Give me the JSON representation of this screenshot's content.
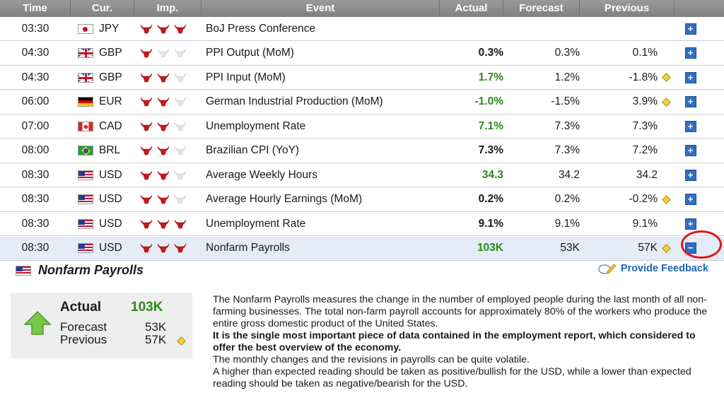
{
  "columns": {
    "time": "Time",
    "cur": "Cur.",
    "imp": "Imp.",
    "event": "Event",
    "actual": "Actual",
    "forecast": "Forecast",
    "previous": "Previous"
  },
  "rows": [
    {
      "time": "03:30",
      "currency": "JPY",
      "flag": "jp",
      "importance": 3,
      "event": "BoJ Press Conference",
      "actual": "",
      "forecast": "",
      "previous": "",
      "revised": false,
      "expanded": false
    },
    {
      "time": "04:30",
      "currency": "GBP",
      "flag": "gb",
      "importance": 1,
      "event": "PPI Output (MoM)",
      "actual": "0.3%",
      "forecast": "0.3%",
      "previous": "0.1%",
      "revised": false,
      "expanded": false
    },
    {
      "time": "04:30",
      "currency": "GBP",
      "flag": "gb",
      "importance": 2,
      "event": "PPI Input (MoM)",
      "actual": "1.7%",
      "forecast": "1.2%",
      "previous": "-1.8%",
      "revised": true,
      "expanded": false
    },
    {
      "time": "06:00",
      "currency": "EUR",
      "flag": "de",
      "importance": 2,
      "event": "German Industrial Production (MoM)",
      "actual": "-1.0%",
      "forecast": "-1.5%",
      "previous": "3.9%",
      "revised": true,
      "expanded": false
    },
    {
      "time": "07:00",
      "currency": "CAD",
      "flag": "ca",
      "importance": 2,
      "event": "Unemployment Rate",
      "actual": "7.1%",
      "forecast": "7.3%",
      "previous": "7.3%",
      "revised": false,
      "expanded": false
    },
    {
      "time": "08:00",
      "currency": "BRL",
      "flag": "br",
      "importance": 2,
      "event": "Brazilian CPI (YoY)",
      "actual": "7.3%",
      "forecast": "7.3%",
      "previous": "7.2%",
      "revised": false,
      "expanded": false
    },
    {
      "time": "08:30",
      "currency": "USD",
      "flag": "us",
      "importance": 2,
      "event": "Average Weekly Hours",
      "actual": "34.3",
      "forecast": "34.2",
      "previous": "34.2",
      "revised": false,
      "expanded": false
    },
    {
      "time": "08:30",
      "currency": "USD",
      "flag": "us",
      "importance": 2,
      "event": "Average Hourly Earnings (MoM)",
      "actual": "0.2%",
      "forecast": "0.2%",
      "previous": "-0.2%",
      "revised": true,
      "expanded": false
    },
    {
      "time": "08:30",
      "currency": "USD",
      "flag": "us",
      "importance": 3,
      "event": "Unemployment Rate",
      "actual": "9.1%",
      "forecast": "9.1%",
      "previous": "9.1%",
      "revised": false,
      "expanded": false
    },
    {
      "time": "08:30",
      "currency": "USD",
      "flag": "us",
      "importance": 3,
      "event": "Nonfarm Payrolls",
      "actual": "103K",
      "forecast": "53K",
      "previous": "57K",
      "revised": true,
      "expanded": true
    }
  ],
  "actual_colors": [
    "",
    "#1a1a1a",
    "#2c8a1c",
    "#2c8a1c",
    "#2c8a1c",
    "#1a1a1a",
    "#2c8a1c",
    "#1a1a1a",
    "#1a1a1a",
    "#2c8a1c"
  ],
  "detail": {
    "title": "Nonfarm Payrolls",
    "feedback": "Provide Feedback",
    "actual_label": "Actual",
    "actual_value": "103K",
    "forecast_label": "Forecast",
    "forecast_value": "53K",
    "previous_label": "Previous",
    "previous_value": "57K",
    "desc1": "The Nonfarm Payrolls measures the change in the number of employed people during the last month of all non-farming businesses. The total non-farm payroll accounts for approximately 80% of the workers who produce the entire gross domestic product of the United States.",
    "desc2": "It is the single most important piece of data contained in the employment report, which considered to offer the best overview of the economy.",
    "desc3": "The monthly changes and the revisions in payrolls can be quite volatile.",
    "desc4": "A higher than expected reading should be taken as positive/bullish for the USD, while a lower than expected reading should be taken as negative/bearish for the USD."
  }
}
